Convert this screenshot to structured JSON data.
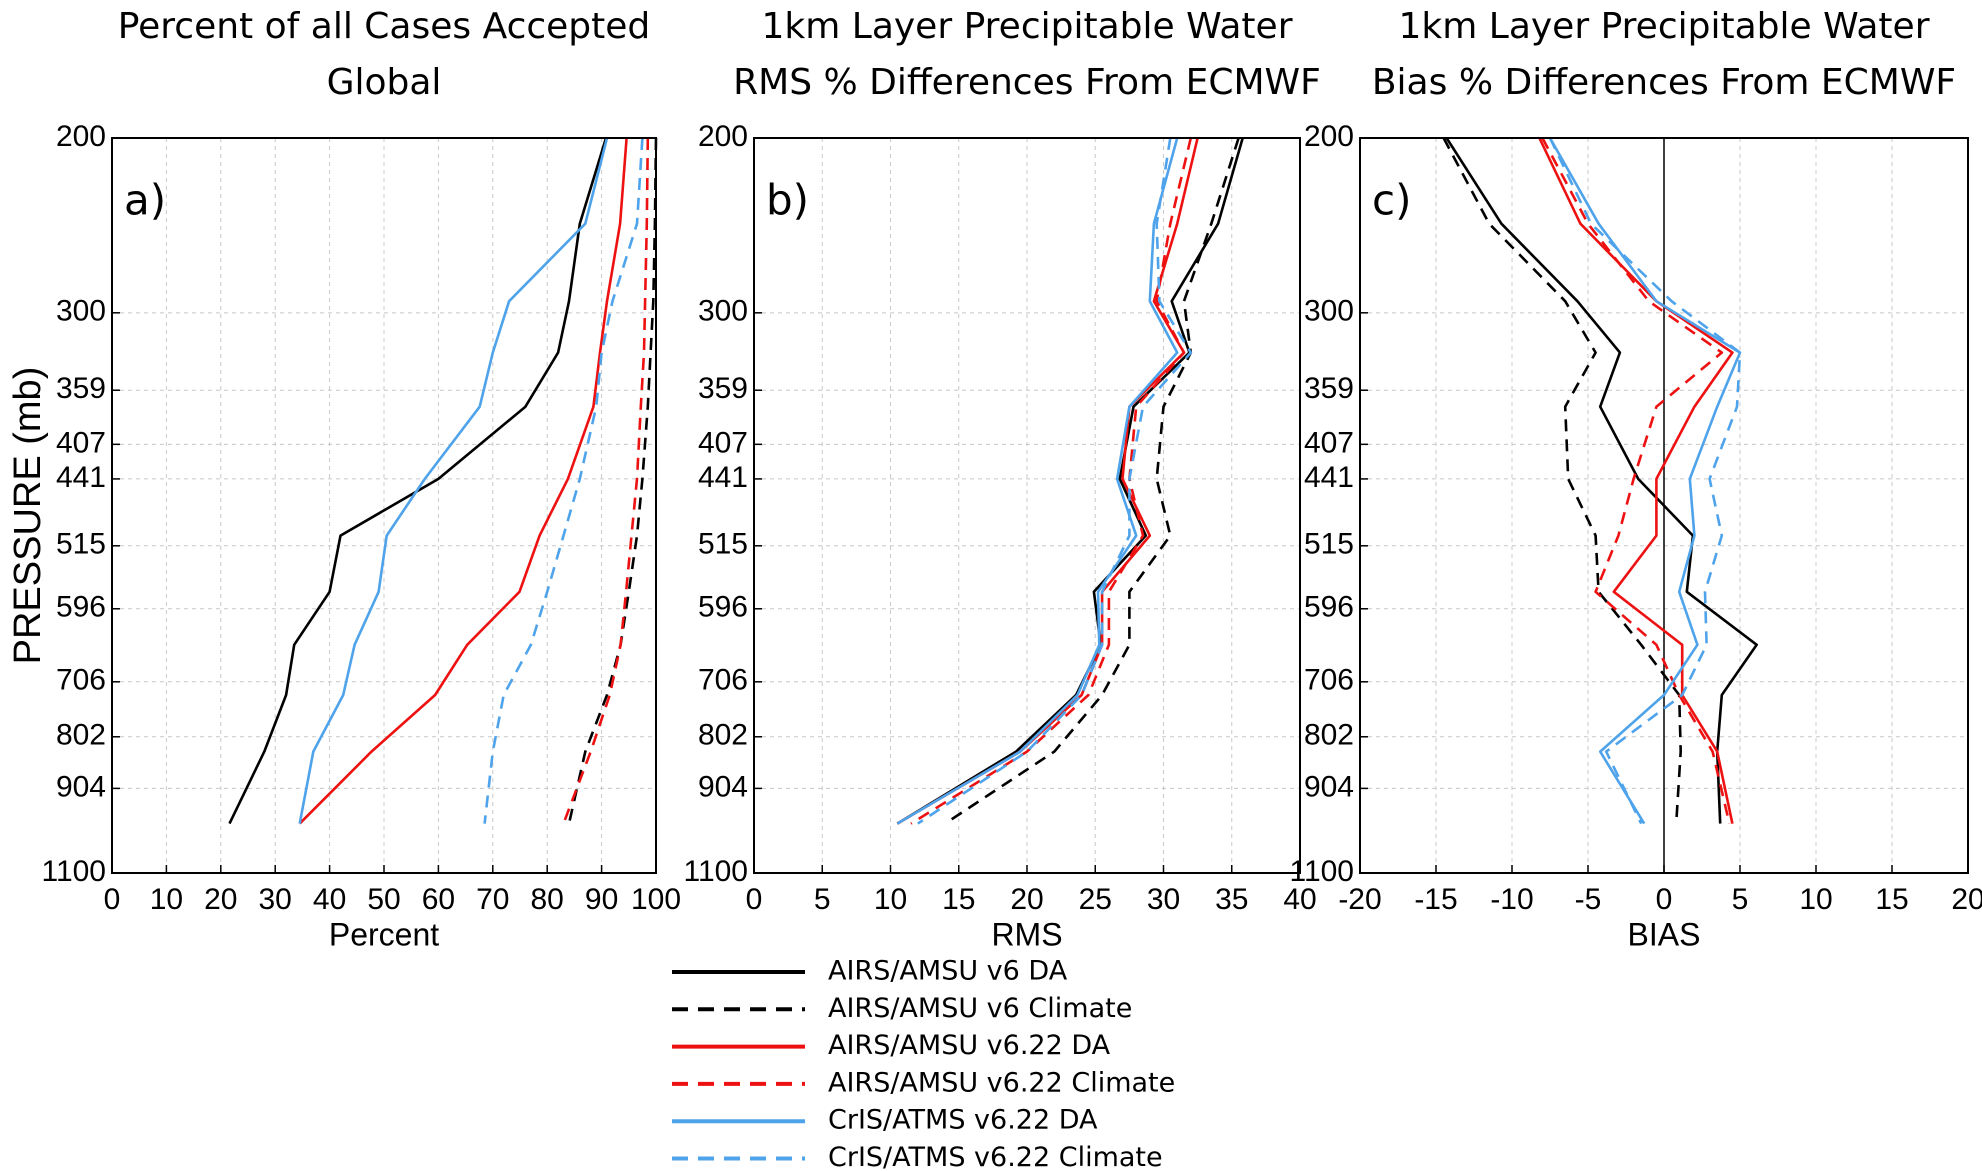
{
  "chart_data": [
    {
      "type": "line",
      "title": "Percent of all Cases Accepted",
      "subtitle": "Global",
      "annotation": "a)",
      "xlabel": "Percent",
      "ylabel": "PRESSURE (mb)",
      "y": [
        200,
        244,
        292,
        329,
        373,
        441,
        503,
        573,
        648,
        728,
        830,
        981
      ],
      "series": [
        {
          "values": [
            90.8,
            86,
            84,
            82,
            76,
            60,
            42,
            40,
            33.5,
            32,
            28,
            21.6
          ]
        },
        {
          "values": [
            100,
            99.8,
            99.5,
            99,
            98.5,
            97.5,
            96.5,
            95,
            93.5,
            91,
            87,
            84
          ]
        },
        {
          "values": [
            94.6,
            93.4,
            91,
            89.7,
            88.5,
            83.8,
            78.6,
            74.9,
            65.3,
            59.4,
            47.7,
            34.5
          ]
        },
        {
          "values": [
            98.5,
            98.3,
            98,
            97.8,
            97.2,
            96.5,
            95.5,
            94.5,
            93.5,
            91.5,
            88,
            83
          ]
        },
        {
          "values": [
            91,
            87,
            73,
            70,
            67.6,
            57.5,
            50.5,
            49,
            44.6,
            42.5,
            37,
            34.5
          ]
        },
        {
          "values": [
            97.5,
            96.5,
            92,
            90,
            89,
            86,
            83,
            80,
            77,
            72,
            70,
            68.5
          ]
        }
      ],
      "xlim": [
        0,
        100
      ],
      "xticks": [
        0,
        10,
        20,
        30,
        40,
        50,
        60,
        70,
        80,
        90,
        100
      ],
      "ylim": [
        200,
        1100
      ],
      "yticks": [
        200,
        300,
        359,
        407,
        441,
        515,
        596,
        706,
        802,
        904,
        1100
      ],
      "yscale": "log",
      "yinverted": true,
      "grid": true,
      "zero_line": false
    },
    {
      "type": "line",
      "title": "1km Layer Precipitable Water",
      "subtitle": "RMS % Differences From ECMWF",
      "annotation": "b)",
      "xlabel": "RMS",
      "y": [
        200,
        244,
        292,
        329,
        373,
        441,
        503,
        573,
        648,
        728,
        830,
        981
      ],
      "series": [
        {
          "values": [
            35.8,
            34,
            30.6,
            31.9,
            27.8,
            26.8,
            28.7,
            24.9,
            25.4,
            23.6,
            19.2,
            10.5
          ]
        },
        {
          "values": [
            35.5,
            33.5,
            31.5,
            32,
            30,
            29.5,
            30.5,
            27.5,
            27.5,
            25.5,
            22,
            14
          ]
        },
        {
          "values": [
            32.5,
            31,
            29.3,
            31.5,
            27.5,
            27,
            29,
            25.5,
            25.5,
            24,
            19.5,
            10.5
          ]
        },
        {
          "values": [
            32,
            30.5,
            29.5,
            31.5,
            28,
            27.5,
            28.5,
            26,
            26,
            24.5,
            20,
            11.5
          ]
        },
        {
          "values": [
            31,
            29.3,
            29,
            31,
            27.5,
            26.6,
            28,
            25.2,
            25.3,
            23.7,
            19.5,
            10.5
          ]
        },
        {
          "values": [
            30.5,
            29.5,
            29.7,
            32,
            28.5,
            27.5,
            27.5,
            25.5,
            25.5,
            24,
            20,
            12
          ]
        }
      ],
      "xlim": [
        0,
        40
      ],
      "xticks": [
        0,
        5,
        10,
        15,
        20,
        25,
        30,
        35,
        40
      ],
      "ylim": [
        200,
        1100
      ],
      "yticks": [
        200,
        300,
        359,
        407,
        441,
        515,
        596,
        706,
        802,
        904,
        1100
      ],
      "yscale": "log",
      "yinverted": true,
      "grid": true,
      "zero_line": false
    },
    {
      "type": "line",
      "title": "1km Layer Precipitable Water",
      "subtitle": "Bias % Differences From ECMWF",
      "annotation": "c)",
      "xlabel": "BIAS",
      "y": [
        200,
        244,
        292,
        329,
        373,
        441,
        503,
        573,
        648,
        728,
        830,
        981
      ],
      "series": [
        {
          "values": [
            -14.3,
            -10.7,
            -5.7,
            -2.9,
            -4.2,
            -1.7,
            1.9,
            1.5,
            6.1,
            3.8,
            3.5,
            3.7
          ]
        },
        {
          "values": [
            -14.5,
            -11.5,
            -6.5,
            -4.5,
            -6.5,
            -6.3,
            -4.5,
            -4.3,
            -1.5,
            1,
            1.1,
            0.8
          ]
        },
        {
          "values": [
            -8.2,
            -5.5,
            -0.5,
            4.5,
            2,
            -0.5,
            -0.5,
            -3.3,
            1.2,
            1.2,
            3.5,
            4.5
          ]
        },
        {
          "values": [
            -8,
            -5,
            -1,
            3.8,
            -0.5,
            -2,
            -3,
            -4.5,
            -0.5,
            1,
            3.2,
            4.3
          ]
        },
        {
          "values": [
            -7.5,
            -4.3,
            -0.5,
            5,
            3.5,
            1.7,
            2,
            1,
            2.2,
            0,
            -4.2,
            -1.3
          ]
        },
        {
          "values": [
            -7.5,
            -4.8,
            0.5,
            5,
            4.8,
            3,
            3.8,
            2.7,
            2.8,
            1.2,
            -3.8,
            -1.5
          ]
        }
      ],
      "xlim": [
        -20,
        20
      ],
      "xticks": [
        -20,
        -15,
        -10,
        -5,
        0,
        5,
        10,
        15,
        20
      ],
      "ylim": [
        200,
        1100
      ],
      "yticks": [
        200,
        300,
        359,
        407,
        441,
        515,
        596,
        706,
        802,
        904,
        1100
      ],
      "yscale": "log",
      "yinverted": true,
      "grid": true,
      "zero_line": true
    }
  ],
  "legend": [
    {
      "name": "AIRS/AMSU v6 DA",
      "color": "#000000",
      "dashed": false
    },
    {
      "name": "AIRS/AMSU v6 Climate",
      "color": "#000000",
      "dashed": true
    },
    {
      "name": "AIRS/AMSU v6.22 DA",
      "color": "#ee1111",
      "dashed": false
    },
    {
      "name": "AIRS/AMSU v6.22 Climate",
      "color": "#ee1111",
      "dashed": true
    },
    {
      "name": "CrIS/ATMS v6.22 DA",
      "color": "#4ea3ea",
      "dashed": false
    },
    {
      "name": "CrIS/ATMS v6.22 Climate",
      "color": "#4ea3ea",
      "dashed": true
    }
  ]
}
